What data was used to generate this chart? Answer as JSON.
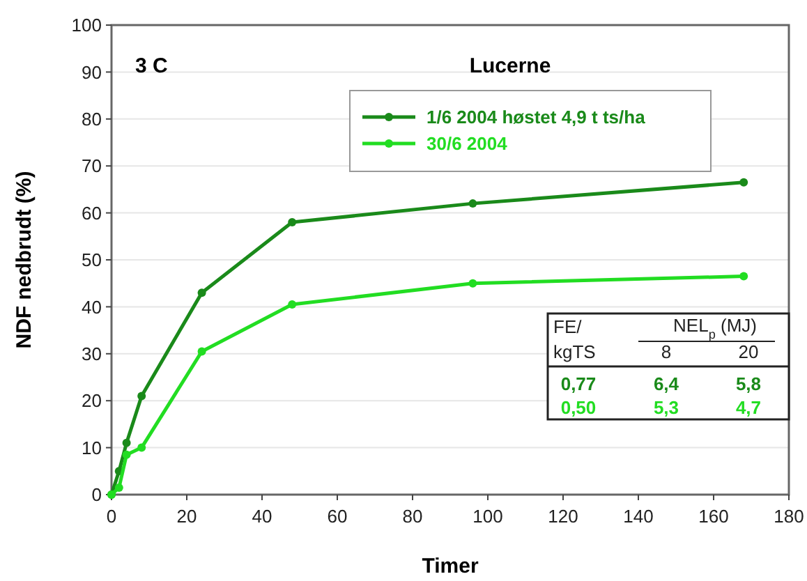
{
  "chart_data": {
    "type": "line",
    "title": "Lucerne",
    "xlabel": "Timer",
    "ylabel": "NDF nedbrudt (%)",
    "x": [
      0,
      2,
      4,
      8,
      24,
      48,
      96,
      168
    ],
    "series": [
      {
        "name": "1/6 2004 høstet 4,9 t ts/ha",
        "color": "#1a8a1a",
        "values": [
          0,
          5,
          11,
          21,
          43,
          58,
          62,
          66.5
        ]
      },
      {
        "name": "30/6 2004",
        "color": "#22dd22",
        "values": [
          0,
          1.5,
          8.5,
          10,
          30.5,
          40.5,
          45,
          46.5
        ]
      }
    ],
    "xlim": [
      0,
      180
    ],
    "xticks": [
      0,
      20,
      40,
      60,
      80,
      100,
      120,
      140,
      160,
      180
    ],
    "ylim": [
      0,
      100
    ],
    "yticks": [
      0,
      10,
      20,
      30,
      40,
      50,
      60,
      70,
      80,
      90,
      100
    ],
    "grid": "y",
    "legend": "top right",
    "marker": "circle",
    "line_style": "solid",
    "annotations": [
      "3 C",
      "FE/",
      "kgTS",
      "NEL$_{p}$ (MJ)",
      "8",
      "20",
      "0,77",
      "6,4",
      "5,8",
      "0,50",
      "5,3",
      "4,7"
    ]
  }
}
